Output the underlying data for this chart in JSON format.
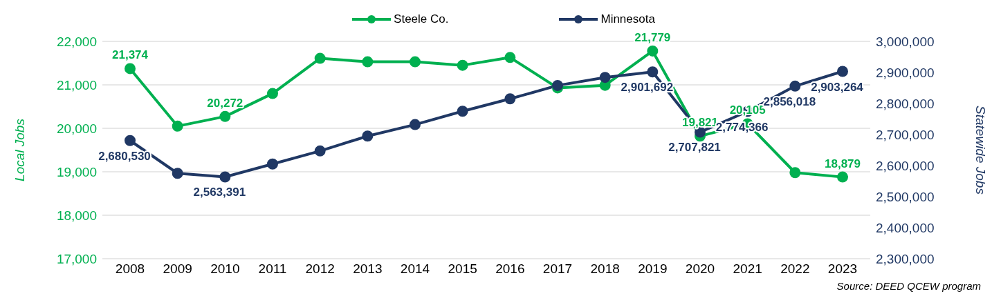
{
  "chart_data": {
    "type": "line",
    "categories": [
      "2008",
      "2009",
      "2010",
      "2011",
      "2012",
      "2013",
      "2014",
      "2015",
      "2016",
      "2017",
      "2018",
      "2019",
      "2020",
      "2021",
      "2022",
      "2023"
    ],
    "series": [
      {
        "name": "Steele Co.",
        "color": "#00b050",
        "values": [
          21374,
          20050,
          20272,
          20800,
          21610,
          21530,
          21530,
          21450,
          21630,
          20930,
          20990,
          21779,
          19821,
          20105,
          18980,
          18879
        ],
        "value_labels": [
          "21,374",
          null,
          "20,272",
          null,
          null,
          null,
          null,
          null,
          null,
          null,
          null,
          "21,779",
          "19,821",
          "20,105",
          null,
          "18,879"
        ]
      },
      {
        "name": "Minnesota",
        "color": "#203864",
        "axis": "y2",
        "values": [
          2680530,
          2575000,
          2563391,
          2605000,
          2647000,
          2695000,
          2732000,
          2775000,
          2815000,
          2858000,
          2884000,
          2901692,
          2707821,
          2774366,
          2856018,
          2903264
        ],
        "value_labels": [
          "2,680,530",
          null,
          "2,563,391",
          null,
          null,
          null,
          null,
          null,
          null,
          null,
          null,
          "2,901,692",
          "2,707,821",
          "2,774,366",
          "2,856,018",
          "2,903,264"
        ]
      }
    ],
    "ylabel": "Local Jobs",
    "y2label": "Statewide Jobs",
    "ylim": [
      17000,
      22000
    ],
    "yticks": [
      {
        "value": 17000,
        "label": "17,000"
      },
      {
        "value": 18000,
        "label": "18,000"
      },
      {
        "value": 19000,
        "label": "19,000"
      },
      {
        "value": 20000,
        "label": "20,000"
      },
      {
        "value": 21000,
        "label": "21,000"
      },
      {
        "value": 22000,
        "label": "22,000"
      }
    ],
    "y2lim": [
      2300000,
      3000000
    ],
    "y2ticks": [
      {
        "value": 2300000,
        "label": "2,300,000"
      },
      {
        "value": 2400000,
        "label": "2,400,000"
      },
      {
        "value": 2500000,
        "label": "2,500,000"
      },
      {
        "value": 2600000,
        "label": "2,600,000"
      },
      {
        "value": 2700000,
        "label": "2,700,000"
      },
      {
        "value": 2800000,
        "label": "2,800,000"
      },
      {
        "value": 2900000,
        "label": "2,900,000"
      },
      {
        "value": 3000000,
        "label": "3,000,000"
      }
    ],
    "grid": "y",
    "legend": "top",
    "marker": "circle",
    "line_style": "solid",
    "annotations": [
      "Source: DEED QCEW program"
    ]
  }
}
